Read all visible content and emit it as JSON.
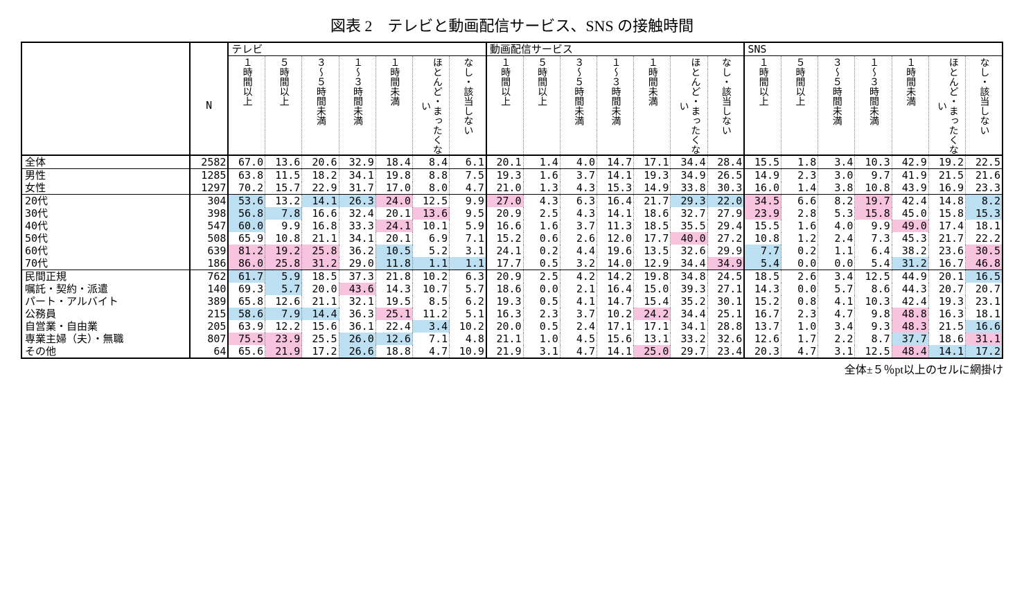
{
  "title": "図表 2　テレビと動画配信サービス、SNS の接触時間",
  "footnote": "全体±５％pt以上のセルに網掛け",
  "n_label": "N",
  "colors": {
    "pink": "#f8c3de",
    "blue": "#bcdff2",
    "background": "#ffffff",
    "text": "#000000"
  },
  "groups": [
    "テレビ",
    "動画配信サービス",
    "SNS"
  ],
  "subheaders": [
    "１時間以上",
    "５時間以上",
    "３〜５時間未満",
    "１〜３時間未満",
    "１時間未満",
    "ほとんど・まったくない",
    "なし・該当しない"
  ],
  "rows": [
    {
      "label": "全体",
      "n": 2582,
      "section": true,
      "v": [
        67.0,
        13.6,
        20.6,
        32.9,
        18.4,
        8.4,
        6.1,
        20.1,
        1.4,
        4.0,
        14.7,
        17.1,
        34.4,
        28.4,
        15.5,
        1.8,
        3.4,
        10.3,
        42.9,
        19.2,
        22.5
      ],
      "hl": [
        "",
        "",
        "",
        "",
        "",
        "",
        "",
        "",
        "",
        "",
        "",
        "",
        "",
        "",
        "",
        "",
        "",
        "",
        "",
        "",
        ""
      ]
    },
    {
      "label": "男性",
      "n": 1285,
      "section": true,
      "v": [
        63.8,
        11.5,
        18.2,
        34.1,
        19.8,
        8.8,
        7.5,
        19.3,
        1.6,
        3.7,
        14.1,
        19.3,
        34.9,
        26.5,
        14.9,
        2.3,
        3.0,
        9.7,
        41.9,
        21.5,
        21.6
      ],
      "hl": [
        "",
        "",
        "",
        "",
        "",
        "",
        "",
        "",
        "",
        "",
        "",
        "",
        "",
        "",
        "",
        "",
        "",
        "",
        "",
        "",
        ""
      ]
    },
    {
      "label": "女性",
      "n": 1297,
      "v": [
        70.2,
        15.7,
        22.9,
        31.7,
        17.0,
        8.0,
        4.7,
        21.0,
        1.3,
        4.3,
        15.3,
        14.9,
        33.8,
        30.3,
        16.0,
        1.4,
        3.8,
        10.8,
        43.9,
        16.9,
        23.3
      ],
      "hl": [
        "",
        "",
        "",
        "",
        "",
        "",
        "",
        "",
        "",
        "",
        "",
        "",
        "",
        "",
        "",
        "",
        "",
        "",
        "",
        "",
        ""
      ]
    },
    {
      "label": "20代",
      "n": 304,
      "section": true,
      "v": [
        53.6,
        13.2,
        14.1,
        26.3,
        24.0,
        12.5,
        9.9,
        27.0,
        4.3,
        6.3,
        16.4,
        21.7,
        29.3,
        22.0,
        34.5,
        6.6,
        8.2,
        19.7,
        42.4,
        14.8,
        8.2
      ],
      "hl": [
        "b",
        "",
        "b",
        "b",
        "p",
        "",
        "",
        "p",
        "",
        "",
        "",
        "",
        "b",
        "b",
        "p",
        "",
        "",
        "p",
        "",
        "",
        "b"
      ]
    },
    {
      "label": "30代",
      "n": 398,
      "v": [
        56.8,
        7.8,
        16.6,
        32.4,
        20.1,
        13.6,
        9.5,
        20.9,
        2.5,
        4.3,
        14.1,
        18.6,
        32.7,
        27.9,
        23.9,
        2.8,
        5.3,
        15.8,
        45.0,
        15.8,
        15.3
      ],
      "hl": [
        "b",
        "b",
        "",
        "",
        "",
        "p",
        "",
        "",
        "",
        "",
        "",
        "",
        "",
        "",
        "p",
        "",
        "",
        "p",
        "",
        "",
        "b"
      ]
    },
    {
      "label": "40代",
      "n": 547,
      "v": [
        60.0,
        9.9,
        16.8,
        33.3,
        24.1,
        10.1,
        5.9,
        16.6,
        1.6,
        3.7,
        11.3,
        18.5,
        35.5,
        29.4,
        15.5,
        1.6,
        4.0,
        9.9,
        49.0,
        17.4,
        18.1
      ],
      "hl": [
        "b",
        "",
        "",
        "",
        "p",
        "",
        "",
        "",
        "",
        "",
        "",
        "",
        "",
        "",
        "",
        "",
        "",
        "",
        "p",
        "",
        ""
      ]
    },
    {
      "label": "50代",
      "n": 508,
      "v": [
        65.9,
        10.8,
        21.1,
        34.1,
        20.1,
        6.9,
        7.1,
        15.2,
        0.6,
        2.6,
        12.0,
        17.7,
        40.0,
        27.2,
        10.8,
        1.2,
        2.4,
        7.3,
        45.3,
        21.7,
        22.2
      ],
      "hl": [
        "",
        "",
        "",
        "",
        "",
        "",
        "",
        "",
        "",
        "",
        "",
        "",
        "p",
        "",
        "",
        "",
        "",
        "",
        "",
        "",
        ""
      ]
    },
    {
      "label": "60代",
      "n": 639,
      "v": [
        81.2,
        19.2,
        25.8,
        36.2,
        10.5,
        5.2,
        3.1,
        24.1,
        0.2,
        4.4,
        19.6,
        13.5,
        32.6,
        29.9,
        7.7,
        0.2,
        1.1,
        6.4,
        38.2,
        23.6,
        30.5
      ],
      "hl": [
        "p",
        "p",
        "p",
        "",
        "b",
        "",
        "",
        "",
        "",
        "",
        "",
        "",
        "",
        "",
        "b",
        "",
        "",
        "",
        "",
        "",
        "p"
      ]
    },
    {
      "label": "70代",
      "n": 186,
      "v": [
        86.0,
        25.8,
        31.2,
        29.0,
        11.8,
        1.1,
        1.1,
        17.7,
        0.5,
        3.2,
        14.0,
        12.9,
        34.4,
        34.9,
        5.4,
        0.0,
        0.0,
        5.4,
        31.2,
        16.7,
        46.8
      ],
      "hl": [
        "p",
        "p",
        "p",
        "",
        "b",
        "b",
        "b",
        "",
        "",
        "",
        "",
        "",
        "",
        "p",
        "b",
        "",
        "",
        "",
        "b",
        "",
        "p"
      ]
    },
    {
      "label": "民間正規",
      "n": 762,
      "section": true,
      "v": [
        61.7,
        5.9,
        18.5,
        37.3,
        21.8,
        10.2,
        6.3,
        20.9,
        2.5,
        4.2,
        14.2,
        19.8,
        34.8,
        24.5,
        18.5,
        2.6,
        3.4,
        12.5,
        44.9,
        20.1,
        16.5
      ],
      "hl": [
        "b",
        "b",
        "",
        "",
        "",
        "",
        "",
        "",
        "",
        "",
        "",
        "",
        "",
        "",
        "",
        "",
        "",
        "",
        "",
        "",
        "b"
      ]
    },
    {
      "label": "嘱託・契約・派遣",
      "n": 140,
      "v": [
        69.3,
        5.7,
        20.0,
        43.6,
        14.3,
        10.7,
        5.7,
        18.6,
        0.0,
        2.1,
        16.4,
        15.0,
        39.3,
        27.1,
        14.3,
        0.0,
        5.7,
        8.6,
        44.3,
        20.7,
        20.7
      ],
      "hl": [
        "",
        "b",
        "",
        "p",
        "",
        "",
        "",
        "",
        "",
        "",
        "",
        "",
        "",
        "",
        "",
        "",
        "",
        "",
        "",
        "",
        ""
      ]
    },
    {
      "label": "パート・アルバイト",
      "n": 389,
      "v": [
        65.8,
        12.6,
        21.1,
        32.1,
        19.5,
        8.5,
        6.2,
        19.3,
        0.5,
        4.1,
        14.7,
        15.4,
        35.2,
        30.1,
        15.2,
        0.8,
        4.1,
        10.3,
        42.4,
        19.3,
        23.1
      ],
      "hl": [
        "",
        "",
        "",
        "",
        "",
        "",
        "",
        "",
        "",
        "",
        "",
        "",
        "",
        "",
        "",
        "",
        "",
        "",
        "",
        "",
        ""
      ]
    },
    {
      "label": "公務員",
      "n": 215,
      "v": [
        58.6,
        7.9,
        14.4,
        36.3,
        25.1,
        11.2,
        5.1,
        16.3,
        2.3,
        3.7,
        10.2,
        24.2,
        34.4,
        25.1,
        16.7,
        2.3,
        4.7,
        9.8,
        48.8,
        16.3,
        18.1
      ],
      "hl": [
        "b",
        "b",
        "b",
        "",
        "p",
        "",
        "",
        "",
        "",
        "",
        "",
        "p",
        "",
        "",
        "",
        "",
        "",
        "",
        "p",
        "",
        ""
      ]
    },
    {
      "label": "自営業・自由業",
      "n": 205,
      "v": [
        63.9,
        12.2,
        15.6,
        36.1,
        22.4,
        3.4,
        10.2,
        20.0,
        0.5,
        2.4,
        17.1,
        17.1,
        34.1,
        28.8,
        13.7,
        1.0,
        3.4,
        9.3,
        48.3,
        21.5,
        16.6
      ],
      "hl": [
        "",
        "",
        "",
        "",
        "",
        "b",
        "",
        "",
        "",
        "",
        "",
        "",
        "",
        "",
        "",
        "",
        "",
        "",
        "p",
        "",
        "b"
      ]
    },
    {
      "label": "専業主婦（夫）・無職",
      "n": 807,
      "v": [
        75.5,
        23.9,
        25.5,
        26.0,
        12.6,
        7.1,
        4.8,
        21.1,
        1.0,
        4.5,
        15.6,
        13.1,
        33.2,
        32.6,
        12.6,
        1.7,
        2.2,
        8.7,
        37.7,
        18.6,
        31.1
      ],
      "hl": [
        "p",
        "p",
        "",
        "b",
        "b",
        "",
        "",
        "",
        "",
        "",
        "",
        "",
        "",
        "",
        "",
        "",
        "",
        "",
        "b",
        "",
        "p"
      ]
    },
    {
      "label": "その他",
      "n": 64,
      "last": true,
      "v": [
        65.6,
        21.9,
        17.2,
        26.6,
        18.8,
        4.7,
        10.9,
        21.9,
        3.1,
        4.7,
        14.1,
        25.0,
        29.7,
        23.4,
        20.3,
        4.7,
        3.1,
        12.5,
        48.4,
        14.1,
        17.2
      ],
      "hl": [
        "",
        "p",
        "",
        "b",
        "",
        "",
        "",
        "",
        "",
        "",
        "",
        "p",
        "",
        "",
        "",
        "",
        "",
        "",
        "p",
        "b",
        "b"
      ]
    }
  ]
}
